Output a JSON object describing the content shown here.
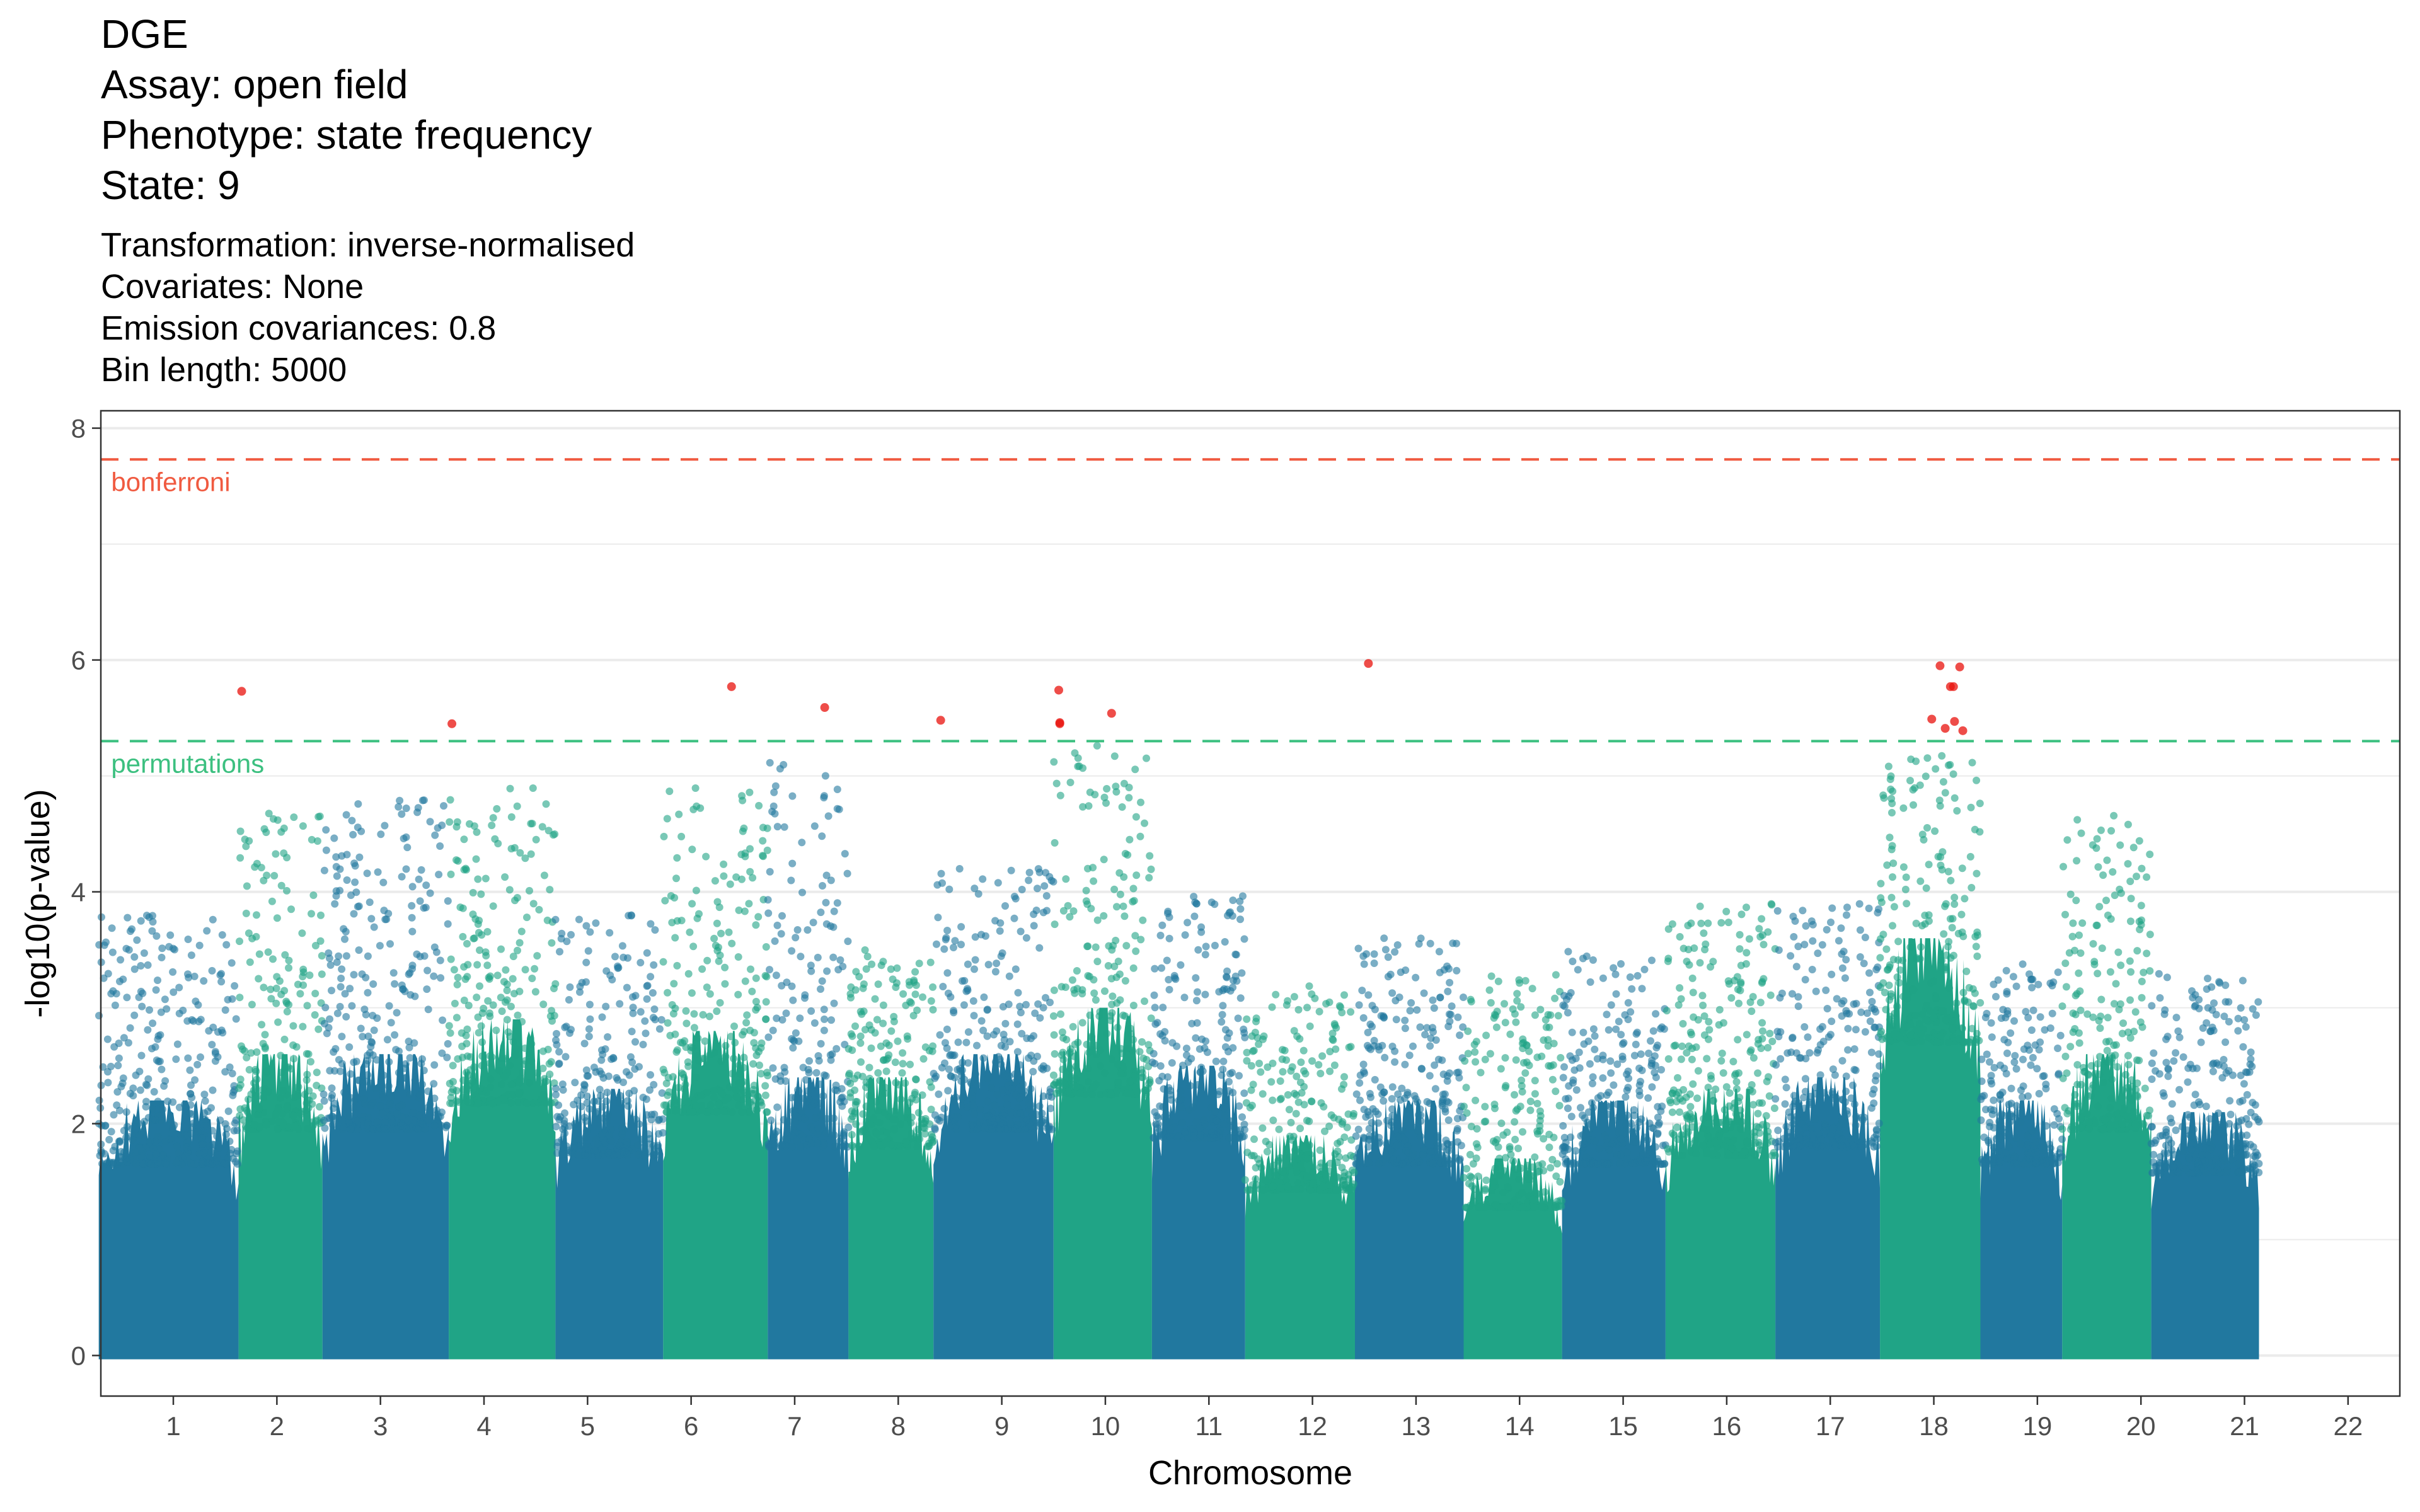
{
  "header": {
    "title_lines": [
      "DGE",
      "Assay: open field",
      "Phenotype: state frequency",
      "State: 9"
    ],
    "subtitle_lines": [
      "Transformation: inverse-normalised",
      "Covariates: None",
      "Emission covariances: 0.8",
      "Bin length: 5000"
    ]
  },
  "chart_data": {
    "type": "scatter",
    "title": "DGE",
    "subtitle": "Transformation: inverse-normalised",
    "xlabel": "Chromosome",
    "ylabel": "-log10(p-value)",
    "ylim": [
      -0.35,
      8.15
    ],
    "xlim": [
      0.3,
      22.5
    ],
    "x_ticks": [
      "1",
      "2",
      "3",
      "4",
      "5",
      "6",
      "7",
      "8",
      "9",
      "10",
      "11",
      "12",
      "13",
      "14",
      "15",
      "16",
      "17",
      "18",
      "19",
      "20",
      "21",
      "22"
    ],
    "y_ticks": [
      0,
      2,
      4,
      6,
      8
    ],
    "grid": true,
    "colors": {
      "blue": "#21789F",
      "green": "#20A486",
      "significant": "#E8120C",
      "bonferroni": "#F05A40",
      "permutations": "#3CC080"
    },
    "thresholds": [
      {
        "name": "bonferroni",
        "y": 7.73,
        "color": "#F05A40"
      },
      {
        "name": "permutations",
        "y": 5.3,
        "color": "#3CC080"
      }
    ],
    "chromosomes": [
      {
        "chr": "1",
        "start": 0.28,
        "end": 1.63,
        "color": "blue",
        "base_max": 2.2,
        "peak": 3.8
      },
      {
        "chr": "2",
        "start": 1.63,
        "end": 2.44,
        "color": "green",
        "base_max": 2.6,
        "peak": 4.7
      },
      {
        "chr": "3",
        "start": 2.44,
        "end": 3.66,
        "color": "blue",
        "base_max": 2.6,
        "peak": 4.8
      },
      {
        "chr": "4",
        "start": 3.66,
        "end": 4.69,
        "color": "green",
        "base_max": 2.9,
        "peak": 4.9
      },
      {
        "chr": "5",
        "start": 4.69,
        "end": 5.73,
        "color": "blue",
        "base_max": 2.3,
        "peak": 3.8
      },
      {
        "chr": "6",
        "start": 5.73,
        "end": 6.74,
        "color": "green",
        "base_max": 2.8,
        "peak": 4.9
      },
      {
        "chr": "7",
        "start": 6.74,
        "end": 7.52,
        "color": "blue",
        "base_max": 2.4,
        "peak": 5.2
      },
      {
        "chr": "8",
        "start": 7.52,
        "end": 8.34,
        "color": "green",
        "base_max": 2.4,
        "peak": 3.5
      },
      {
        "chr": "9",
        "start": 8.34,
        "end": 9.5,
        "color": "blue",
        "base_max": 2.6,
        "peak": 4.2
      },
      {
        "chr": "10",
        "start": 9.5,
        "end": 10.45,
        "color": "green",
        "base_max": 3.0,
        "peak": 5.3
      },
      {
        "chr": "11",
        "start": 10.45,
        "end": 11.35,
        "color": "blue",
        "base_max": 2.5,
        "peak": 4.0
      },
      {
        "chr": "12",
        "start": 11.35,
        "end": 12.41,
        "color": "green",
        "base_max": 1.9,
        "peak": 3.2
      },
      {
        "chr": "13",
        "start": 12.41,
        "end": 13.46,
        "color": "blue",
        "base_max": 2.2,
        "peak": 3.6
      },
      {
        "chr": "14",
        "start": 13.46,
        "end": 14.41,
        "color": "green",
        "base_max": 1.7,
        "peak": 3.3
      },
      {
        "chr": "15",
        "start": 14.41,
        "end": 15.41,
        "color": "blue",
        "base_max": 2.2,
        "peak": 3.5
      },
      {
        "chr": "16",
        "start": 15.41,
        "end": 16.47,
        "color": "green",
        "base_max": 2.3,
        "peak": 3.9
      },
      {
        "chr": "17",
        "start": 16.47,
        "end": 17.48,
        "color": "blue",
        "base_max": 2.4,
        "peak": 3.9
      },
      {
        "chr": "18",
        "start": 17.48,
        "end": 18.45,
        "color": "green",
        "base_max": 3.6,
        "peak": 5.2
      },
      {
        "chr": "19",
        "start": 18.45,
        "end": 19.24,
        "color": "blue",
        "base_max": 2.2,
        "peak": 3.4
      },
      {
        "chr": "20",
        "start": 19.24,
        "end": 20.1,
        "color": "green",
        "base_max": 2.6,
        "peak": 4.7
      },
      {
        "chr": "21",
        "start": 20.1,
        "end": 21.14,
        "color": "blue",
        "base_max": 2.1,
        "peak": 3.3
      }
    ],
    "significant_points": [
      {
        "x": 1.66,
        "y": 5.73
      },
      {
        "x": 3.69,
        "y": 5.45
      },
      {
        "x": 6.39,
        "y": 5.77
      },
      {
        "x": 7.29,
        "y": 5.59
      },
      {
        "x": 8.41,
        "y": 5.48
      },
      {
        "x": 9.55,
        "y": 5.74
      },
      {
        "x": 9.56,
        "y": 5.46
      },
      {
        "x": 9.56,
        "y": 5.45
      },
      {
        "x": 10.06,
        "y": 5.54
      },
      {
        "x": 12.54,
        "y": 5.97
      },
      {
        "x": 17.98,
        "y": 5.49
      },
      {
        "x": 18.06,
        "y": 5.95
      },
      {
        "x": 18.11,
        "y": 5.41
      },
      {
        "x": 18.16,
        "y": 5.77
      },
      {
        "x": 18.19,
        "y": 5.77
      },
      {
        "x": 18.2,
        "y": 5.47
      },
      {
        "x": 18.25,
        "y": 5.94
      },
      {
        "x": 18.28,
        "y": 5.39
      }
    ]
  }
}
